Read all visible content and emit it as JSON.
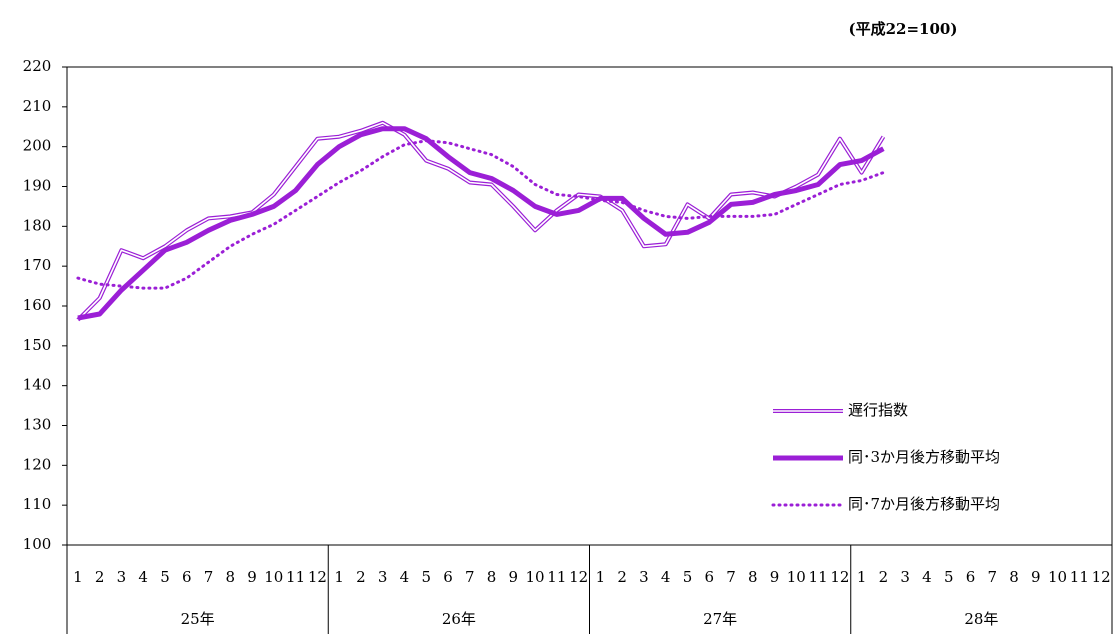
{
  "chart_data": {
    "type": "line",
    "unit_label": "(平成22=100)",
    "categories": [
      "1",
      "2",
      "3",
      "4",
      "5",
      "6",
      "7",
      "8",
      "9",
      "10",
      "11",
      "12",
      "1",
      "2",
      "3",
      "4",
      "5",
      "6",
      "7",
      "8",
      "9",
      "10",
      "11",
      "12",
      "1",
      "2",
      "3",
      "4",
      "5",
      "6",
      "7",
      "8",
      "9",
      "10",
      "11",
      "12",
      "1",
      "2",
      "3",
      "4",
      "5",
      "6",
      "7",
      "8",
      "9",
      "10",
      "11",
      "12"
    ],
    "years": [
      "25年",
      "26年",
      "27年",
      "28年"
    ],
    "series": [
      {
        "name": "遅行指数",
        "color": "#9b1fd6",
        "style": "double",
        "values": [
          156.5,
          162,
          174,
          172,
          175,
          179,
          182,
          182.5,
          183.5,
          188,
          195,
          202,
          202.5,
          204,
          206,
          203,
          196.5,
          194.5,
          191,
          190.5,
          185,
          179,
          184,
          188,
          187.5,
          184,
          175,
          175.5,
          185.5,
          182,
          188,
          188.5,
          187.5,
          190,
          193,
          202,
          193.5,
          202.5,
          null,
          null,
          null,
          null,
          null,
          null,
          null,
          null,
          null,
          null
        ]
      },
      {
        "name": "同･3か月後方移動平均",
        "color": "#9b1fd6",
        "style": "thick",
        "values": [
          157,
          158,
          164,
          169,
          174,
          176,
          179,
          181.5,
          183,
          185,
          189,
          195.5,
          200,
          203,
          204.5,
          204.5,
          202,
          197.5,
          193.5,
          192,
          189,
          185,
          183,
          184,
          187,
          187,
          182,
          178,
          178.5,
          181,
          185.5,
          186,
          188,
          189,
          190.5,
          195.5,
          196.5,
          199.5,
          null,
          null,
          null,
          null,
          null,
          null,
          null,
          null,
          null,
          null
        ]
      },
      {
        "name": "同･7か月後方移動平均",
        "color": "#9b1fd6",
        "style": "dotted",
        "values": [
          167,
          165.5,
          165,
          164.5,
          164.5,
          167,
          171,
          175,
          178,
          180.5,
          184,
          187.5,
          191,
          194,
          197.5,
          200.5,
          201.5,
          201,
          199.5,
          198,
          195,
          190.5,
          188,
          187.5,
          186.5,
          186,
          184,
          182.5,
          182,
          182.5,
          182.5,
          182.5,
          183,
          185.5,
          188,
          190.5,
          191.5,
          193.5,
          null,
          null,
          null,
          null,
          null,
          null,
          null,
          null,
          null,
          null
        ]
      }
    ],
    "ylim": [
      100,
      220
    ],
    "yticks": [
      100,
      110,
      120,
      130,
      140,
      150,
      160,
      170,
      180,
      190,
      200,
      210,
      220
    ],
    "grid": false,
    "legend": "lower right"
  }
}
